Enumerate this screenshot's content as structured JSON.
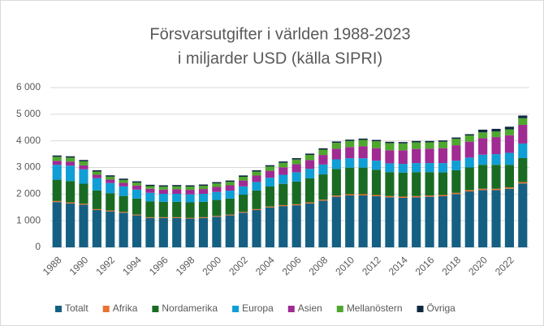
{
  "chart_data": {
    "type": "stacked_bar",
    "title": [
      "Försvarsutgifter i världen 1988-2023",
      "i miljarder USD (källa SIPRI)"
    ],
    "categories": [
      "1988",
      null,
      "1990",
      null,
      "1992",
      null,
      "1994",
      null,
      "1996",
      null,
      "1998",
      null,
      "2000",
      null,
      "2002",
      null,
      "2004",
      null,
      "2006",
      null,
      "2008",
      null,
      "2010",
      null,
      "2012",
      null,
      "2014",
      null,
      "2016",
      null,
      "2018",
      null,
      "2020",
      null,
      "2022",
      null
    ],
    "series": [
      {
        "name": "Totalt",
        "color": "#156082",
        "values": [
          1700,
          1650,
          1600,
          1400,
          1350,
          1300,
          1200,
          1100,
          1100,
          1100,
          1080,
          1100,
          1150,
          1200,
          1300,
          1400,
          1500,
          1550,
          1580,
          1650,
          1750,
          1900,
          1950,
          1950,
          1920,
          1880,
          1860,
          1880,
          1900,
          1920,
          2000,
          2100,
          2150,
          2150,
          2200,
          2400
        ]
      },
      {
        "name": "Afrika",
        "color": "#e97132",
        "values": [
          40,
          40,
          40,
          35,
          35,
          30,
          30,
          30,
          30,
          30,
          30,
          30,
          30,
          30,
          30,
          35,
          35,
          35,
          40,
          40,
          40,
          45,
          45,
          45,
          45,
          45,
          45,
          45,
          45,
          45,
          45,
          50,
          50,
          50,
          50,
          50
        ]
      },
      {
        "name": "Nordamerika",
        "color": "#196b24",
        "values": [
          800,
          800,
          750,
          700,
          650,
          600,
          600,
          600,
          580,
          580,
          580,
          580,
          600,
          600,
          650,
          700,
          750,
          800,
          850,
          900,
          950,
          1000,
          1000,
          1000,
          950,
          900,
          900,
          900,
          880,
          850,
          850,
          850,
          900,
          900,
          850,
          900
        ]
      },
      {
        "name": "Europa",
        "color": "#0f9ed5",
        "values": [
          560,
          580,
          540,
          460,
          380,
          360,
          340,
          320,
          300,
          300,
          300,
          300,
          300,
          300,
          310,
          320,
          330,
          340,
          350,
          360,
          370,
          360,
          350,
          350,
          340,
          330,
          330,
          340,
          340,
          350,
          360,
          370,
          380,
          400,
          450,
          550
        ]
      },
      {
        "name": "Asien",
        "color": "#a02b93",
        "values": [
          150,
          150,
          150,
          130,
          130,
          130,
          150,
          150,
          160,
          170,
          170,
          180,
          190,
          200,
          220,
          240,
          260,
          280,
          300,
          330,
          360,
          400,
          420,
          450,
          470,
          490,
          510,
          530,
          540,
          560,
          580,
          600,
          620,
          640,
          660,
          700
        ]
      },
      {
        "name": "Mellanöstern",
        "color": "#4ea72e",
        "values": [
          150,
          150,
          150,
          120,
          110,
          110,
          110,
          100,
          110,
          110,
          120,
          120,
          130,
          130,
          140,
          150,
          160,
          170,
          180,
          190,
          200,
          220,
          230,
          240,
          260,
          270,
          260,
          250,
          240,
          240,
          240,
          230,
          220,
          210,
          220,
          250
        ]
      },
      {
        "name": "Övriga",
        "color": "#0e2841",
        "values": [
          50,
          50,
          50,
          50,
          50,
          50,
          50,
          50,
          50,
          50,
          50,
          50,
          50,
          50,
          50,
          50,
          50,
          50,
          50,
          50,
          50,
          50,
          50,
          50,
          50,
          50,
          50,
          50,
          50,
          50,
          50,
          50,
          100,
          100,
          100,
          100
        ]
      }
    ],
    "ylim": [
      0,
      6000
    ],
    "yticks": [
      0,
      {
        "value": 1000,
        "label": "1 000"
      },
      {
        "value": 2000,
        "label": "2 000"
      },
      {
        "value": 3000,
        "label": "3 000"
      },
      {
        "value": 4000,
        "label": "4 000"
      },
      {
        "value": 5000,
        "label": "5 000"
      },
      {
        "value": 6000,
        "label": "6 000"
      }
    ],
    "grid": true,
    "legend": "bottom"
  }
}
